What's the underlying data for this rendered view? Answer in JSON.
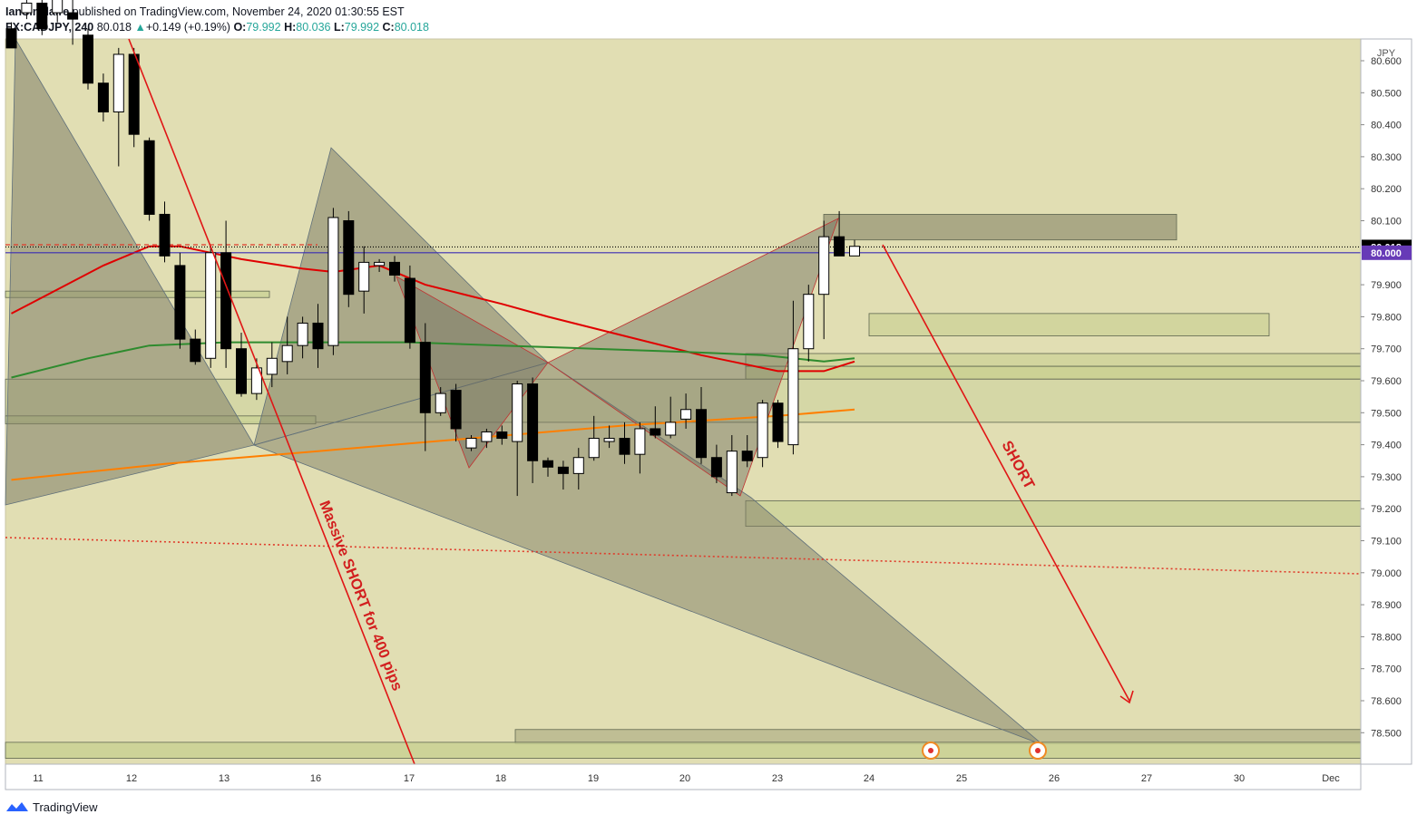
{
  "header": {
    "author": "IanSinclaire",
    "published_text": "published on TradingView.com, November 24, 2020 01:30:55 EST",
    "symbol": "FX:CADJPY, 240",
    "last": "80.018",
    "change_arrow": "▲",
    "change": "+0.149 (+0.19%)",
    "o_label": "O:",
    "o_value": "79.992",
    "h_label": "H:",
    "h_value": "80.036",
    "l_label": "L:",
    "l_value": "79.992",
    "c_label": "C:",
    "c_value": "80.018"
  },
  "footer": {
    "brand": "TradingView",
    "logo_icon": "tradingview-logo-icon"
  },
  "annotations": {
    "massive_short": "Massive SHORT for 400 pips",
    "short": "SHORT"
  },
  "chart_data": {
    "type": "candlestick",
    "currency_label": "JPY",
    "ylim": [
      78.42,
      80.68
    ],
    "y_ticks": [
      "80.600",
      "80.500",
      "80.400",
      "80.300",
      "80.200",
      "80.100",
      "79.900",
      "79.800",
      "79.700",
      "79.600",
      "79.500",
      "79.400",
      "79.300",
      "79.200",
      "79.100",
      "79.000",
      "78.900",
      "78.800",
      "78.700",
      "78.600",
      "78.500"
    ],
    "x_ticks": [
      "11",
      "12",
      "13",
      "16",
      "17",
      "18",
      "19",
      "20",
      "23",
      "24",
      "25",
      "26",
      "27",
      "30",
      "Dec"
    ],
    "price_labels": [
      {
        "text": "80.018",
        "bg": "#000000"
      },
      {
        "text": "80.000",
        "bg": "#673ab7"
      }
    ],
    "candles": [
      {
        "o": 80.7,
        "h": 80.72,
        "l": 80.64,
        "c": 80.64
      },
      {
        "o": 80.75,
        "h": 80.82,
        "l": 80.73,
        "c": 80.78
      },
      {
        "o": 80.78,
        "h": 80.79,
        "l": 80.68,
        "c": 80.7
      },
      {
        "o": 80.75,
        "h": 80.82,
        "l": 80.72,
        "c": 80.8
      },
      {
        "o": 80.75,
        "h": 80.79,
        "l": 80.65,
        "c": 80.73
      },
      {
        "o": 80.68,
        "h": 80.7,
        "l": 80.51,
        "c": 80.53
      },
      {
        "o": 80.53,
        "h": 80.56,
        "l": 80.41,
        "c": 80.44
      },
      {
        "o": 80.44,
        "h": 80.64,
        "l": 80.27,
        "c": 80.62
      },
      {
        "o": 80.62,
        "h": 80.64,
        "l": 80.33,
        "c": 80.37
      },
      {
        "o": 80.35,
        "h": 80.36,
        "l": 80.1,
        "c": 80.12
      },
      {
        "o": 80.12,
        "h": 80.16,
        "l": 79.97,
        "c": 79.99
      },
      {
        "o": 79.96,
        "h": 80.0,
        "l": 79.7,
        "c": 79.73
      },
      {
        "o": 79.73,
        "h": 79.76,
        "l": 79.65,
        "c": 79.66
      },
      {
        "o": 79.67,
        "h": 80.02,
        "l": 79.64,
        "c": 80.0
      },
      {
        "o": 80.0,
        "h": 80.1,
        "l": 79.64,
        "c": 79.7
      },
      {
        "o": 79.7,
        "h": 79.75,
        "l": 79.55,
        "c": 79.56
      },
      {
        "o": 79.56,
        "h": 79.67,
        "l": 79.54,
        "c": 79.64
      },
      {
        "o": 79.62,
        "h": 79.72,
        "l": 79.58,
        "c": 79.67
      },
      {
        "o": 79.66,
        "h": 79.8,
        "l": 79.62,
        "c": 79.71
      },
      {
        "o": 79.71,
        "h": 79.8,
        "l": 79.67,
        "c": 79.78
      },
      {
        "o": 79.78,
        "h": 79.84,
        "l": 79.64,
        "c": 79.7
      },
      {
        "o": 79.71,
        "h": 80.14,
        "l": 79.68,
        "c": 80.11
      },
      {
        "o": 80.1,
        "h": 80.13,
        "l": 79.83,
        "c": 79.87
      },
      {
        "o": 79.88,
        "h": 80.02,
        "l": 79.81,
        "c": 79.97
      },
      {
        "o": 79.96,
        "h": 79.98,
        "l": 79.94,
        "c": 79.97
      },
      {
        "o": 79.97,
        "h": 79.99,
        "l": 79.91,
        "c": 79.93
      },
      {
        "o": 79.92,
        "h": 79.96,
        "l": 79.7,
        "c": 79.72
      },
      {
        "o": 79.72,
        "h": 79.78,
        "l": 79.38,
        "c": 79.5
      },
      {
        "o": 79.5,
        "h": 79.58,
        "l": 79.49,
        "c": 79.56
      },
      {
        "o": 79.57,
        "h": 79.59,
        "l": 79.41,
        "c": 79.45
      },
      {
        "o": 79.39,
        "h": 79.43,
        "l": 79.38,
        "c": 79.42
      },
      {
        "o": 79.41,
        "h": 79.45,
        "l": 79.39,
        "c": 79.44
      },
      {
        "o": 79.44,
        "h": 79.46,
        "l": 79.4,
        "c": 79.42
      },
      {
        "o": 79.41,
        "h": 79.6,
        "l": 79.24,
        "c": 79.59
      },
      {
        "o": 79.59,
        "h": 79.61,
        "l": 79.28,
        "c": 79.35
      },
      {
        "o": 79.35,
        "h": 79.36,
        "l": 79.3,
        "c": 79.33
      },
      {
        "o": 79.33,
        "h": 79.35,
        "l": 79.26,
        "c": 79.31
      },
      {
        "o": 79.31,
        "h": 79.39,
        "l": 79.26,
        "c": 79.36
      },
      {
        "o": 79.36,
        "h": 79.49,
        "l": 79.35,
        "c": 79.42
      },
      {
        "o": 79.41,
        "h": 79.46,
        "l": 79.39,
        "c": 79.42
      },
      {
        "o": 79.42,
        "h": 79.47,
        "l": 79.34,
        "c": 79.37
      },
      {
        "o": 79.37,
        "h": 79.47,
        "l": 79.31,
        "c": 79.45
      },
      {
        "o": 79.45,
        "h": 79.52,
        "l": 79.42,
        "c": 79.43
      },
      {
        "o": 79.43,
        "h": 79.55,
        "l": 79.42,
        "c": 79.47
      },
      {
        "o": 79.48,
        "h": 79.56,
        "l": 79.45,
        "c": 79.51
      },
      {
        "o": 79.51,
        "h": 79.58,
        "l": 79.34,
        "c": 79.36
      },
      {
        "o": 79.36,
        "h": 79.4,
        "l": 79.28,
        "c": 79.3
      },
      {
        "o": 79.25,
        "h": 79.43,
        "l": 79.24,
        "c": 79.38
      },
      {
        "o": 79.38,
        "h": 79.43,
        "l": 79.33,
        "c": 79.35
      },
      {
        "o": 79.36,
        "h": 79.54,
        "l": 79.33,
        "c": 79.53
      },
      {
        "o": 79.53,
        "h": 79.54,
        "l": 79.39,
        "c": 79.41
      },
      {
        "o": 79.4,
        "h": 79.85,
        "l": 79.37,
        "c": 79.7
      },
      {
        "o": 79.7,
        "h": 79.9,
        "l": 79.66,
        "c": 79.87
      },
      {
        "o": 79.87,
        "h": 80.1,
        "l": 79.73,
        "c": 80.05
      },
      {
        "o": 80.05,
        "h": 80.13,
        "l": 79.99,
        "c": 79.99
      },
      {
        "o": 79.99,
        "h": 80.04,
        "l": 79.99,
        "c": 80.02
      }
    ],
    "moving_averages": [
      {
        "name": "ma-fast",
        "color": "#e00000",
        "points": [
          [
            0,
            79.81
          ],
          [
            2,
            79.86
          ],
          [
            6,
            79.96
          ],
          [
            9,
            80.02
          ],
          [
            11,
            80.02
          ],
          [
            13,
            80.0
          ],
          [
            15,
            79.98
          ],
          [
            19,
            79.95
          ],
          [
            21,
            79.94
          ],
          [
            24,
            79.96
          ],
          [
            27,
            79.9
          ],
          [
            32,
            79.84
          ],
          [
            35,
            79.8
          ],
          [
            40,
            79.74
          ],
          [
            45,
            79.68
          ],
          [
            47,
            79.66
          ],
          [
            50,
            79.63
          ],
          [
            53,
            79.63
          ],
          [
            55,
            79.66
          ]
        ]
      },
      {
        "name": "ma-mid",
        "color": "#2e8b2e",
        "points": [
          [
            0,
            79.61
          ],
          [
            5,
            79.67
          ],
          [
            9,
            79.71
          ],
          [
            14,
            79.72
          ],
          [
            20,
            79.72
          ],
          [
            26,
            79.72
          ],
          [
            32,
            79.71
          ],
          [
            38,
            79.7
          ],
          [
            44,
            79.69
          ],
          [
            49,
            79.68
          ],
          [
            53,
            79.66
          ],
          [
            55,
            79.67
          ]
        ]
      },
      {
        "name": "ma-slow",
        "color": "#ff7f00",
        "points": [
          [
            0,
            79.29
          ],
          [
            10,
            79.34
          ],
          [
            20,
            79.38
          ],
          [
            30,
            79.42
          ],
          [
            40,
            79.46
          ],
          [
            50,
            79.49
          ],
          [
            55,
            79.51
          ]
        ]
      }
    ],
    "horizontal_lines": [
      {
        "name": "level-80",
        "price": 80.0,
        "color": "#3a2db5"
      },
      {
        "name": "last-price-line",
        "price": 80.018,
        "color": "#000000",
        "dash": "1,2"
      }
    ],
    "zones": [
      {
        "name": "zone-supply-top",
        "fill": "#a09f7d",
        "y1": 80.12,
        "y2": 80.04
      },
      {
        "name": "zone-79-80",
        "fill": "#cfd49a",
        "y1": 79.81,
        "y2": 79.74
      },
      {
        "name": "zone-79-65",
        "fill": "#cfd49a",
        "y1": 79.685,
        "y2": 79.645
      },
      {
        "name": "zone-79-60",
        "fill": "#c8d08f",
        "y1": 79.645,
        "y2": 79.605
      },
      {
        "name": "zone-79-50",
        "fill": "#d2d6a3",
        "y1": 79.605,
        "y2": 79.47
      },
      {
        "name": "zone-79-20",
        "fill": "#cdd39a",
        "y1": 79.225,
        "y2": 79.145
      },
      {
        "name": "zone-78-50",
        "fill": "#b9b98e",
        "y1": 78.51,
        "y2": 78.465
      },
      {
        "name": "zone-left-79-87",
        "fill": "#cbd398",
        "y1": 79.88,
        "y2": 79.86
      },
      {
        "name": "zone-left-79-48",
        "fill": "#cbd398",
        "y1": 79.49,
        "y2": 79.465
      },
      {
        "name": "zone-bottom-strip",
        "fill": "#c9d193",
        "y1": 78.47,
        "y2": 78.42
      }
    ]
  }
}
